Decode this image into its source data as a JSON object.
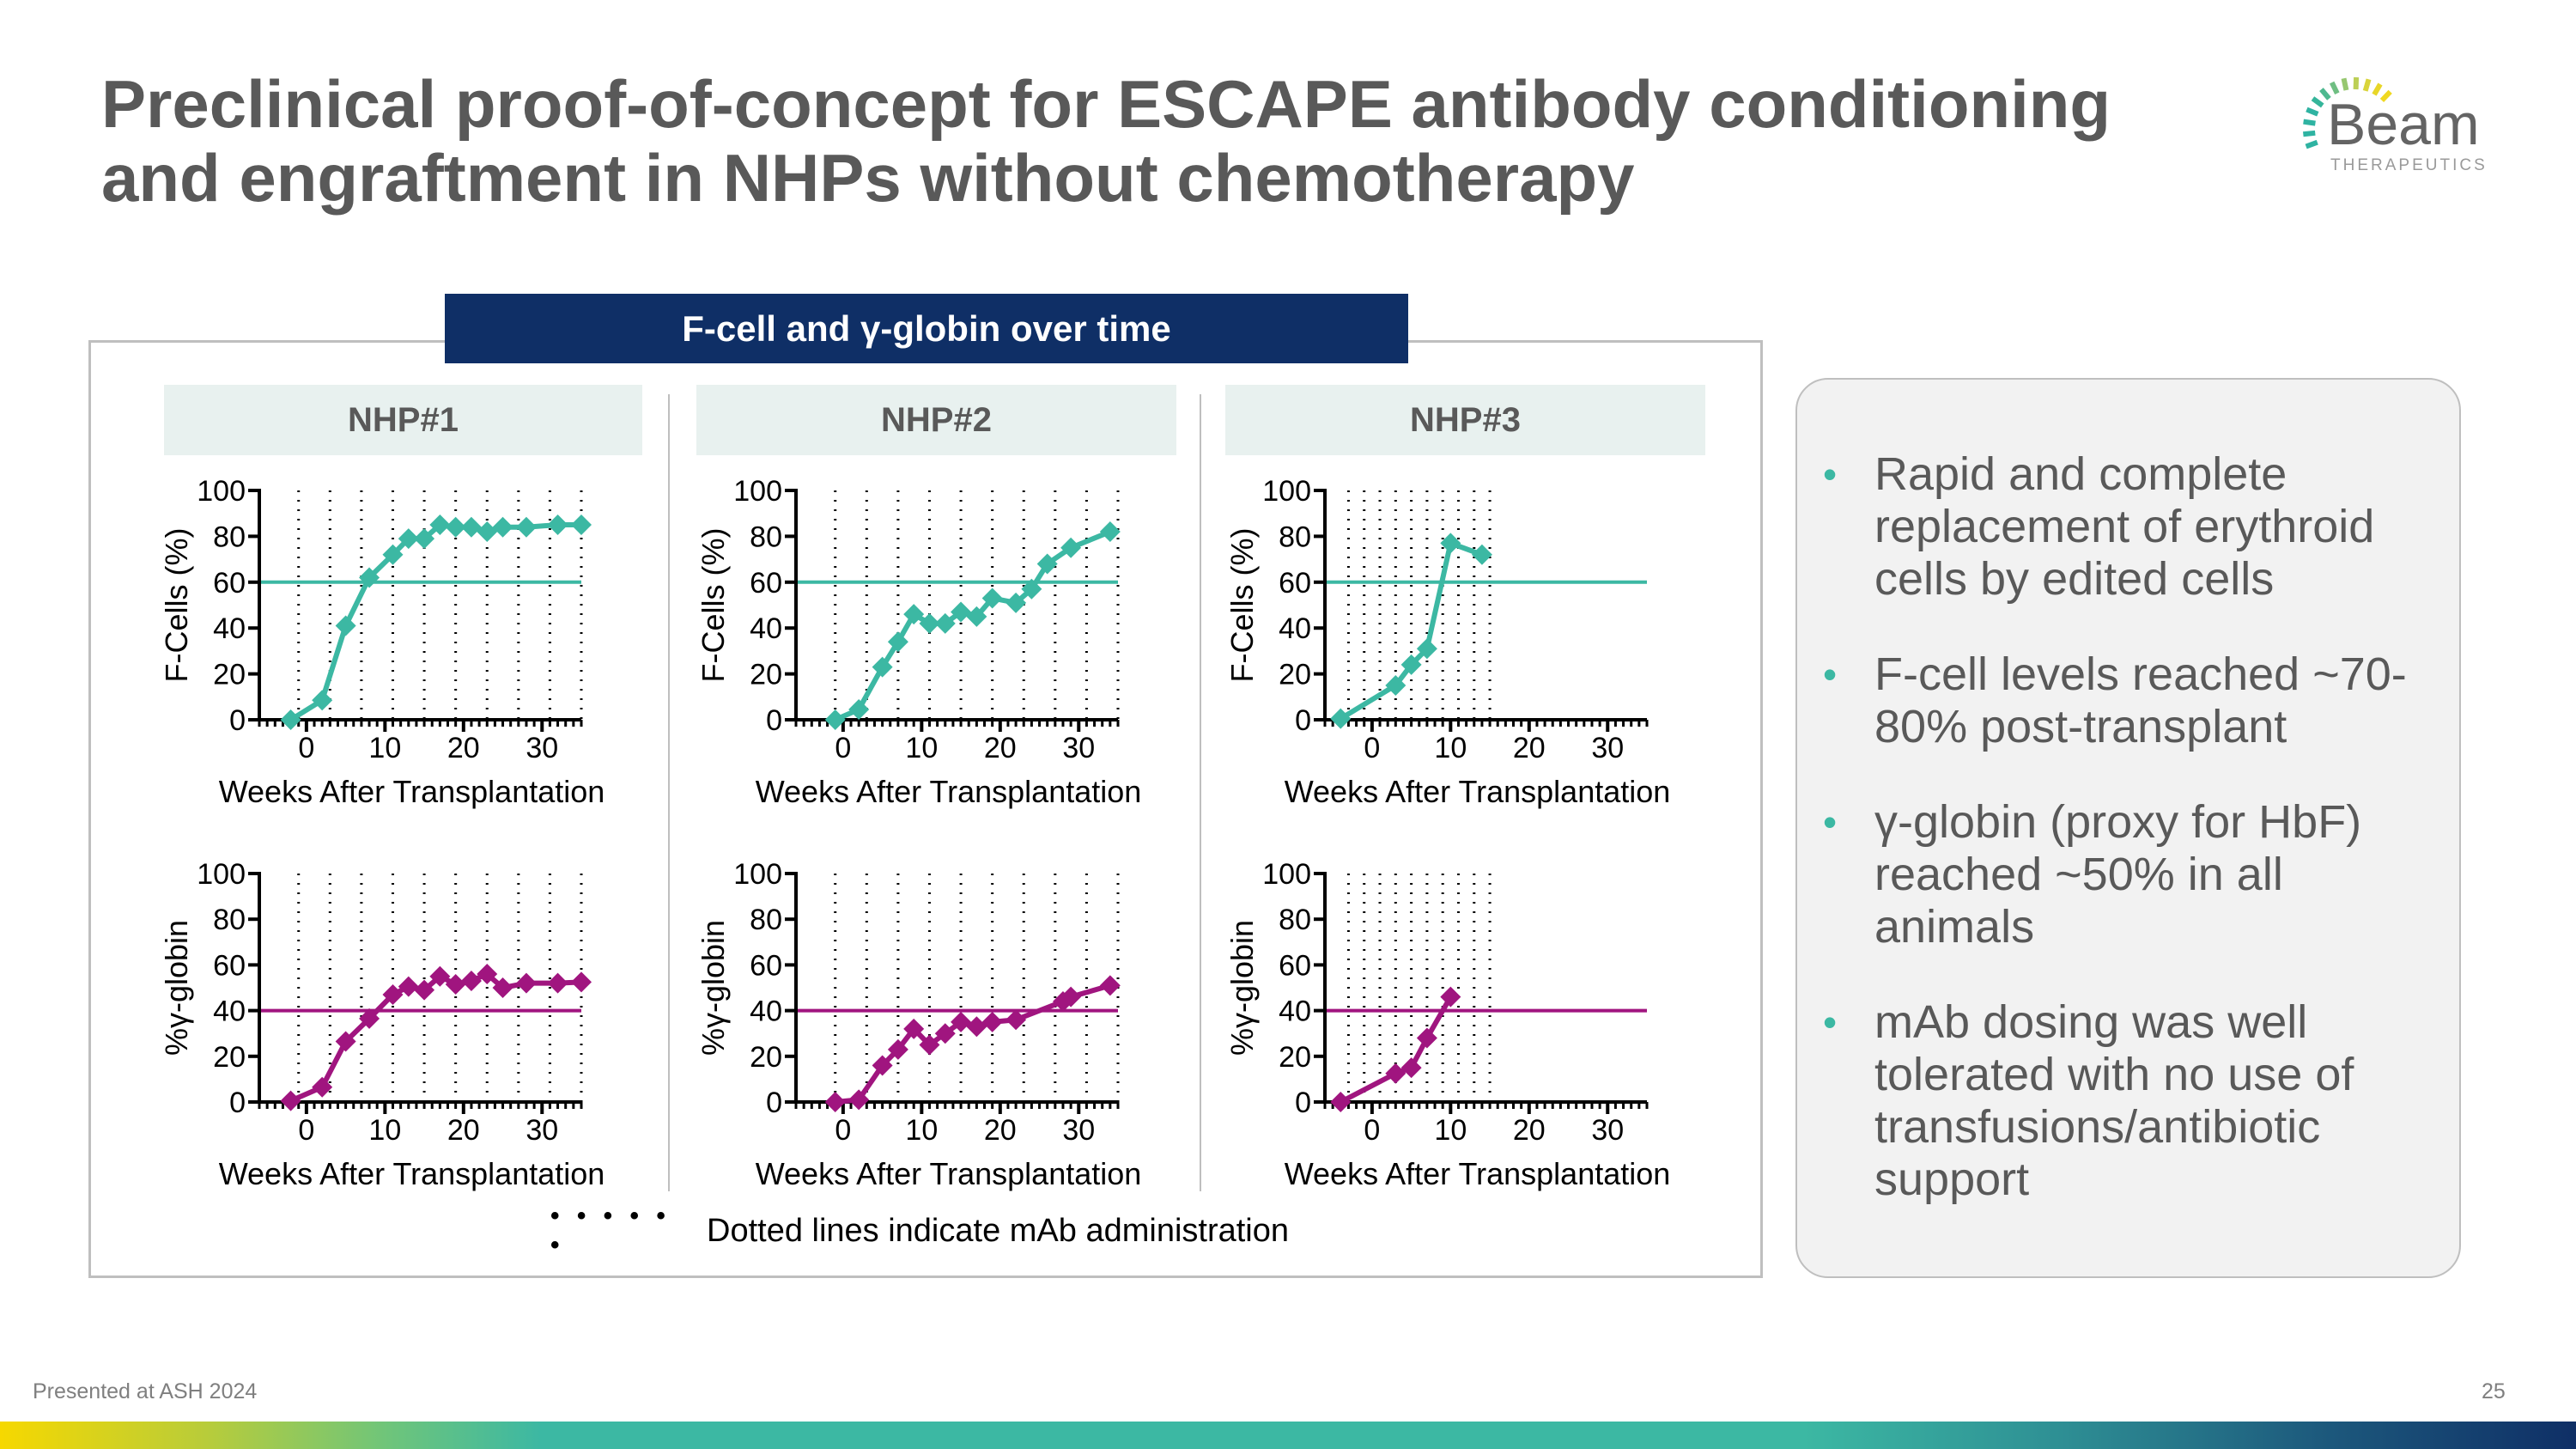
{
  "title": {
    "lines": [
      "Preclinical proof-of-concept for ESCAPE antibody conditioning",
      "and engraftment in NHPs without chemotherapy"
    ]
  },
  "logo": {
    "name": "Beam",
    "sub": "THERAPEUTICS"
  },
  "banner": "F-cell and γ-globin over time",
  "animals": [
    "NHP#1",
    "NHP#2",
    "NHP#3"
  ],
  "legend": {
    "dots": "• • • • • •",
    "text": "Dotted lines indicate mAb administration"
  },
  "bullets": [
    "Rapid and complete replacement of erythroid cells by edited cells",
    "F-cell levels reached ~70-80% post-transplant",
    "γ-globin (proxy for HbF) reached ~50% in all animals",
    "mAb dosing was well tolerated with no use of transfusions/antibiotic support"
  ],
  "footer": {
    "left": "Presented at ASH 2024",
    "page": "25"
  },
  "colors": {
    "fcell": "#3cb8a3",
    "globin": "#a0157f",
    "banner": "#0f2f66",
    "title": "#595959"
  },
  "chart_data": [
    {
      "type": "line",
      "title": "NHP#1",
      "ylabel": "F-Cells (%)",
      "xlabel": "Weeks After Transplantation",
      "xlim": [
        -6,
        35
      ],
      "ylim": [
        0,
        100
      ],
      "xticks": [
        0,
        10,
        20,
        30
      ],
      "yticks": [
        0,
        20,
        40,
        60,
        80,
        100
      ],
      "reference_line": 60,
      "mab_dosing_weeks": [
        -1,
        3,
        7,
        11,
        15,
        19,
        23,
        27,
        31,
        35
      ],
      "color": "#3cb8a3",
      "marker": "diamond",
      "x": [
        -2,
        2,
        5,
        8,
        11,
        13,
        15,
        17,
        19,
        21,
        23,
        25,
        28,
        32,
        35
      ],
      "y": [
        0,
        8.5,
        41,
        62,
        72,
        79,
        79,
        85,
        84,
        84,
        82,
        84,
        84,
        85,
        85
      ]
    },
    {
      "type": "line",
      "title": "NHP#2",
      "ylabel": "F-Cells (%)",
      "xlabel": "Weeks After Transplantation",
      "xlim": [
        -6,
        35
      ],
      "ylim": [
        0,
        100
      ],
      "xticks": [
        0,
        10,
        20,
        30
      ],
      "yticks": [
        0,
        20,
        40,
        60,
        80,
        100
      ],
      "reference_line": 60,
      "mab_dosing_weeks": [
        -1,
        3,
        7,
        11,
        15,
        19,
        23,
        27,
        31,
        35
      ],
      "color": "#3cb8a3",
      "marker": "diamond",
      "x": [
        -1,
        2,
        5,
        7,
        9,
        11,
        13,
        15,
        17,
        19,
        22,
        24,
        26,
        29,
        34
      ],
      "y": [
        0,
        4.5,
        23,
        34,
        46,
        42,
        42,
        47,
        45,
        53,
        51,
        57,
        68,
        75,
        82
      ]
    },
    {
      "type": "line",
      "title": "NHP#3",
      "ylabel": "F-Cells (%)",
      "xlabel": "Weeks After Transplantation",
      "xlim": [
        -6,
        35
      ],
      "ylim": [
        0,
        100
      ],
      "xticks": [
        0,
        10,
        20,
        30
      ],
      "yticks": [
        0,
        20,
        40,
        60,
        80,
        100
      ],
      "reference_line": 60,
      "mab_dosing_weeks": [
        -3,
        -1,
        1,
        3,
        5,
        7,
        9,
        11,
        13,
        15
      ],
      "color": "#3cb8a3",
      "marker": "diamond",
      "x": [
        -4,
        3,
        5,
        7,
        10,
        14
      ],
      "y": [
        0.5,
        15,
        24,
        31,
        77,
        72
      ]
    },
    {
      "type": "line",
      "title": "NHP#1",
      "ylabel": "%γ-globin",
      "xlabel": "Weeks After Transplantation",
      "xlim": [
        -6,
        35
      ],
      "ylim": [
        0,
        100
      ],
      "xticks": [
        0,
        10,
        20,
        30
      ],
      "yticks": [
        0,
        20,
        40,
        60,
        80,
        100
      ],
      "reference_line": 40,
      "mab_dosing_weeks": [
        -1,
        3,
        7,
        11,
        15,
        19,
        23,
        27,
        31,
        35
      ],
      "color": "#a0157f",
      "marker": "diamond",
      "x": [
        -2,
        2,
        5,
        8,
        11,
        13,
        15,
        17,
        19,
        21,
        23,
        25,
        28,
        32,
        35
      ],
      "y": [
        0.5,
        6.5,
        26.5,
        36.5,
        47,
        50.5,
        49,
        55,
        51.5,
        53,
        56,
        50,
        52,
        52,
        52.5
      ]
    },
    {
      "type": "line",
      "title": "NHP#2",
      "ylabel": "%γ-globin",
      "xlabel": "Weeks After Transplantation",
      "xlim": [
        -6,
        35
      ],
      "ylim": [
        0,
        100
      ],
      "xticks": [
        0,
        10,
        20,
        30
      ],
      "yticks": [
        0,
        20,
        40,
        60,
        80,
        100
      ],
      "reference_line": 40,
      "mab_dosing_weeks": [
        -1,
        3,
        7,
        11,
        15,
        19,
        23,
        27,
        31,
        35
      ],
      "color": "#a0157f",
      "marker": "diamond",
      "x": [
        -1,
        2,
        5,
        7,
        9,
        11,
        13,
        15,
        17,
        19,
        22,
        28,
        29,
        34
      ],
      "y": [
        0,
        1,
        16,
        23,
        32,
        25,
        30,
        35,
        33,
        35,
        36,
        44,
        46,
        51
      ]
    },
    {
      "type": "line",
      "title": "NHP#3",
      "ylabel": "%γ-globin",
      "xlabel": "Weeks After Transplantation",
      "xlim": [
        -6,
        35
      ],
      "ylim": [
        0,
        100
      ],
      "xticks": [
        0,
        10,
        20,
        30
      ],
      "yticks": [
        0,
        20,
        40,
        60,
        80,
        100
      ],
      "reference_line": 40,
      "mab_dosing_weeks": [
        -3,
        -1,
        1,
        3,
        5,
        7,
        9,
        11,
        13,
        15
      ],
      "color": "#a0157f",
      "marker": "diamond",
      "x": [
        -4,
        3,
        5,
        7,
        10
      ],
      "y": [
        0,
        12.5,
        15,
        28,
        46
      ]
    }
  ]
}
